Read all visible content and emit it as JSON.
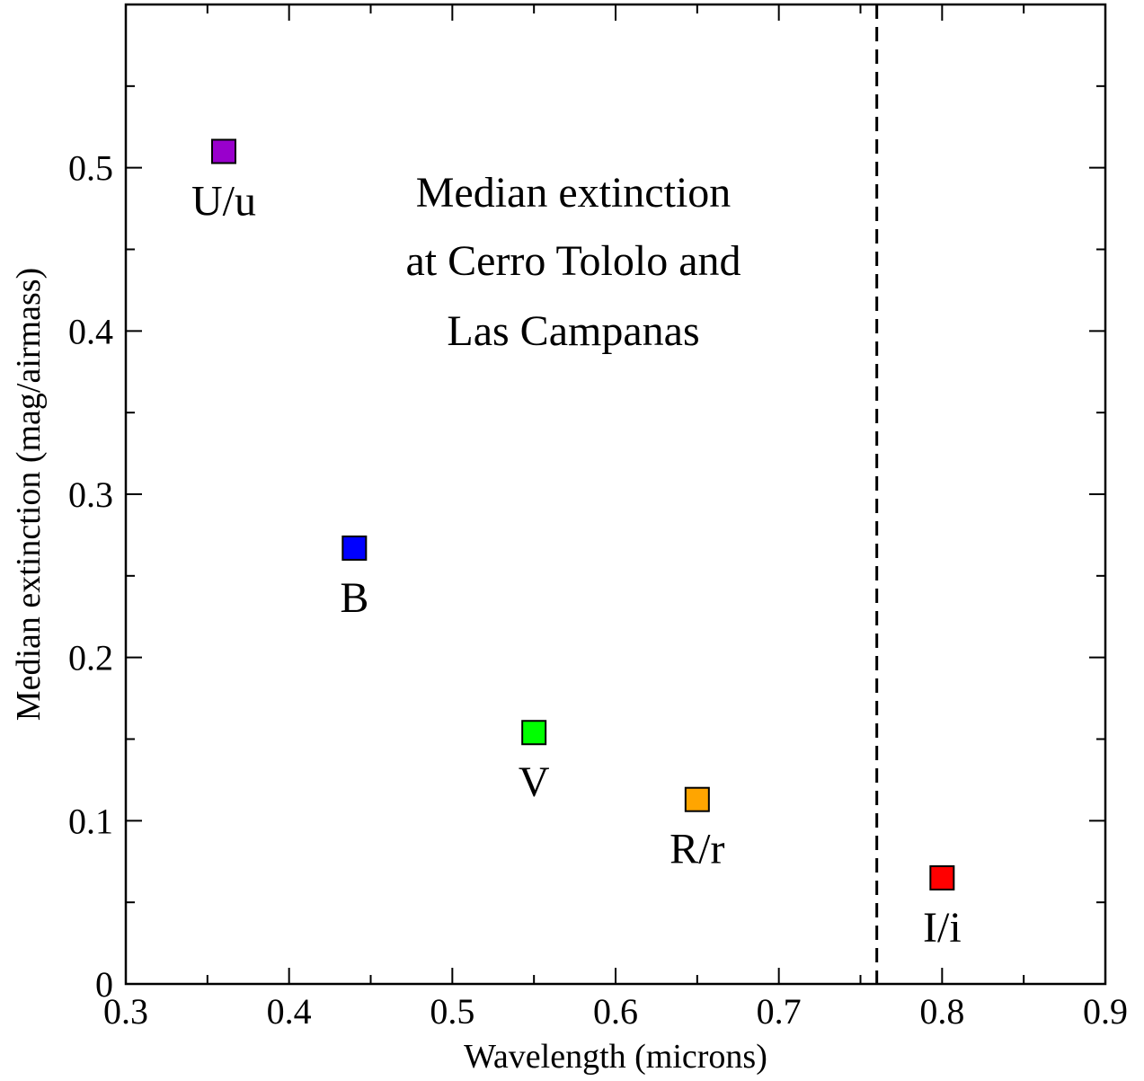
{
  "chart_data": {
    "type": "scatter",
    "title": "",
    "xlabel": "Wavelength (microns)",
    "ylabel": "Median extinction (mag/airmass)",
    "xlim": [
      0.3,
      0.9
    ],
    "ylim": [
      0,
      0.6
    ],
    "x_major_ticks": [
      0.3,
      0.4,
      0.5,
      0.6,
      0.7,
      0.8,
      0.9
    ],
    "x_tick_labels": [
      "0.3",
      "0.4",
      "0.5",
      "0.6",
      "0.7",
      "0.8",
      "0.9"
    ],
    "x_minor_ticks": [
      0.35,
      0.45,
      0.55,
      0.65,
      0.75,
      0.85
    ],
    "y_major_ticks": [
      0,
      0.1,
      0.2,
      0.3,
      0.4,
      0.5
    ],
    "y_tick_labels": [
      "0",
      "0.1",
      "0.2",
      "0.3",
      "0.4",
      "0.5"
    ],
    "y_minor_ticks": [
      0.05,
      0.15,
      0.25,
      0.35,
      0.45,
      0.55
    ],
    "grid": false,
    "legend": "none",
    "marker": "square",
    "points": [
      {
        "label": "U/u",
        "x": 0.36,
        "y": 0.51,
        "color": "#9900CC"
      },
      {
        "label": "B",
        "x": 0.44,
        "y": 0.267,
        "color": "#0000FF"
      },
      {
        "label": "V",
        "x": 0.55,
        "y": 0.154,
        "color": "#00FF00"
      },
      {
        "label": "R/r",
        "x": 0.65,
        "y": 0.113,
        "color": "#FFA500"
      },
      {
        "label": "I/i",
        "x": 0.8,
        "y": 0.065,
        "color": "#FF0000"
      }
    ],
    "vertical_line": {
      "x": 0.76,
      "style": "dashed",
      "color": "#000000"
    },
    "annotation": {
      "lines": [
        "Median extinction",
        "at Cerro Tololo and",
        "Las Campanas"
      ]
    }
  }
}
